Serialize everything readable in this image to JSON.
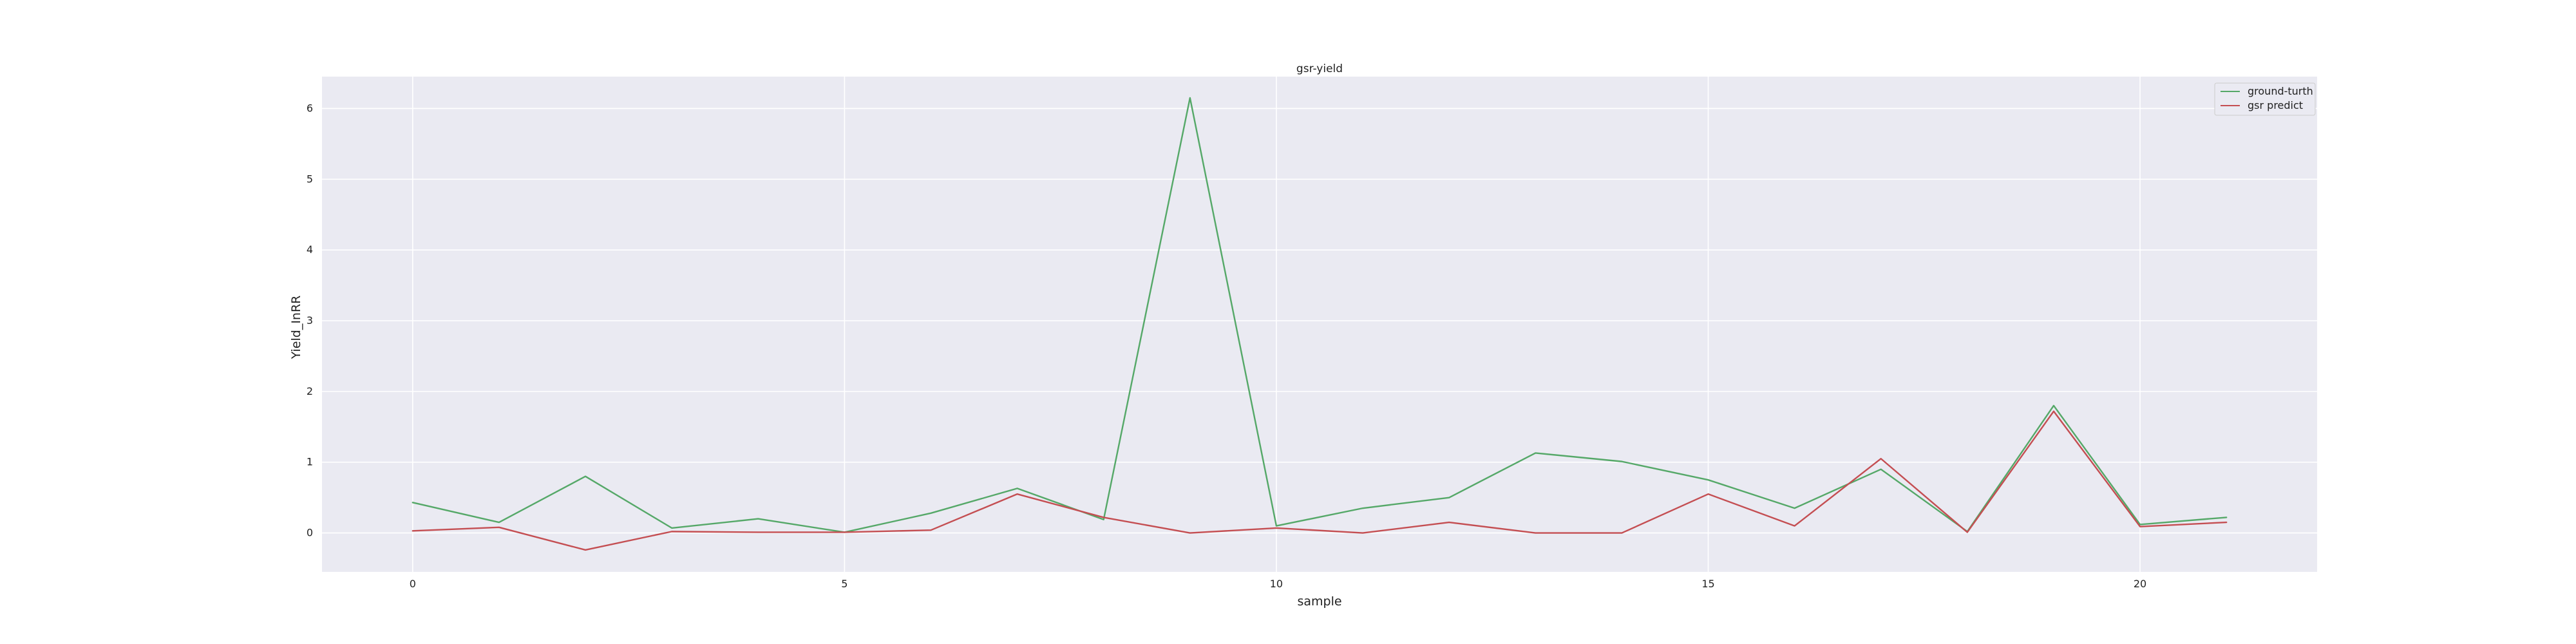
{
  "chart_data": {
    "type": "line",
    "title": "gsr-yield",
    "xlabel": "sample",
    "ylabel": "Yield_InRR",
    "x": [
      0,
      1,
      2,
      3,
      4,
      5,
      6,
      7,
      8,
      9,
      10,
      11,
      12,
      13,
      14,
      15,
      16,
      17,
      18,
      19,
      20,
      21
    ],
    "xlim": [
      -1.05,
      22.05
    ],
    "ylim": [
      -0.55,
      6.45
    ],
    "xticks": [
      0,
      5,
      10,
      15,
      20
    ],
    "yticks": [
      0,
      1,
      2,
      3,
      4,
      5,
      6
    ],
    "grid": true,
    "legend_position": "top-right",
    "background_color": "#eaeaf2",
    "grid_color": "#ffffff",
    "series": [
      {
        "name": "ground-turth",
        "color": "#55a868",
        "values": [
          0.43,
          0.15,
          0.8,
          0.07,
          0.2,
          0.01,
          0.28,
          0.63,
          0.19,
          6.15,
          0.1,
          0.35,
          0.5,
          1.13,
          1.01,
          0.75,
          0.35,
          0.9,
          0.02,
          1.8,
          0.12,
          0.22
        ]
      },
      {
        "name": "gsr predict",
        "color": "#c44e52",
        "values": [
          0.03,
          0.08,
          -0.24,
          0.02,
          0.01,
          0.01,
          0.04,
          0.55,
          0.22,
          0.0,
          0.07,
          0.0,
          0.15,
          0.0,
          0.0,
          0.55,
          0.1,
          1.05,
          0.01,
          1.72,
          0.09,
          0.15
        ]
      }
    ]
  }
}
